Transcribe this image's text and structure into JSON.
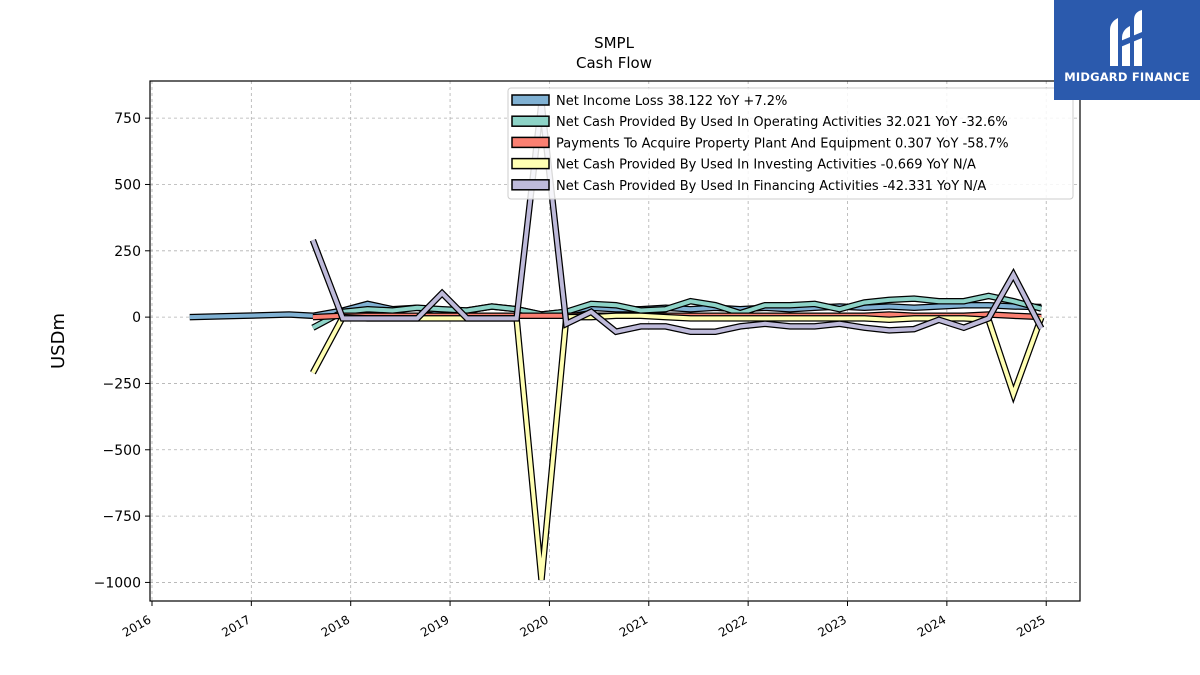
{
  "brand": {
    "logo_text": "MIDGARD FINANCE",
    "color": "#2b5aad"
  },
  "chart_data": {
    "type": "line",
    "title": "SMPL",
    "subtitle": "Cash Flow",
    "ylabel": "USDm",
    "xlabel": "",
    "ylim": [
      -1070,
      890
    ],
    "xlim": [
      2015.98,
      2025.34
    ],
    "yticks": [
      -1000,
      -750,
      -500,
      -250,
      0,
      250,
      500,
      750
    ],
    "ytick_labels": [
      "−1000",
      "−750",
      "−500",
      "−250",
      "0",
      "250",
      "500",
      "750"
    ],
    "xticks": [
      2016,
      2017,
      2018,
      2019,
      2020,
      2021,
      2022,
      2023,
      2024,
      2025
    ],
    "xtick_labels": [
      "2016",
      "2017",
      "2018",
      "2019",
      "2020",
      "2021",
      "2022",
      "2023",
      "2024",
      "2025"
    ],
    "grid": true,
    "legend_position": "top-right",
    "series": [
      {
        "name": "Net Income Loss",
        "legend": "Net Income Loss  38.122 YoY +7.2%",
        "color": "#80b1d3",
        "x": [
          2016.38,
          2016.92,
          2017.38,
          2017.62,
          2017.92,
          2018.17,
          2018.42,
          2018.67,
          2018.92,
          2019.17,
          2019.42,
          2019.67,
          2019.92,
          2020.17,
          2020.42,
          2020.67,
          2020.92,
          2021.17,
          2021.42,
          2021.67,
          2021.92,
          2022.17,
          2022.42,
          2022.67,
          2022.92,
          2023.17,
          2023.42,
          2023.67,
          2023.92,
          2024.17,
          2024.42,
          2024.67,
          2024.95
        ],
        "y": [
          0,
          5,
          10,
          5,
          25,
          50,
          30,
          35,
          20,
          25,
          40,
          30,
          10,
          20,
          35,
          30,
          30,
          35,
          30,
          35,
          30,
          35,
          30,
          35,
          40,
          35,
          40,
          35,
          40,
          45,
          45,
          40,
          38
        ]
      },
      {
        "name": "Net Cash Provided By Used In Operating Activities",
        "legend": "Net Cash Provided By Used In Operating Activities  32.021 YoY -32.6%",
        "color": "#8dd3c7",
        "x": [
          2017.62,
          2017.92,
          2018.17,
          2018.42,
          2018.67,
          2018.92,
          2019.17,
          2019.42,
          2019.67,
          2019.92,
          2020.17,
          2020.42,
          2020.67,
          2020.92,
          2021.17,
          2021.42,
          2021.67,
          2021.92,
          2022.17,
          2022.42,
          2022.67,
          2022.92,
          2023.17,
          2023.42,
          2023.67,
          2023.92,
          2024.17,
          2024.42,
          2024.67,
          2024.95
        ],
        "y": [
          -40,
          20,
          30,
          25,
          35,
          30,
          25,
          40,
          30,
          10,
          20,
          50,
          45,
          25,
          30,
          60,
          45,
          15,
          45,
          45,
          50,
          30,
          55,
          65,
          70,
          60,
          60,
          80,
          60,
          32
        ]
      },
      {
        "name": "Payments To Acquire Property Plant And Equipment",
        "legend": "Payments To Acquire Property Plant And Equipment  0.307 YoY -58.7%",
        "color": "#fb8072",
        "x": [
          2017.62,
          2017.92,
          2018.17,
          2018.42,
          2018.67,
          2018.92,
          2019.17,
          2019.42,
          2019.67,
          2019.92,
          2020.17,
          2020.42,
          2020.67,
          2020.92,
          2021.17,
          2021.42,
          2021.67,
          2021.92,
          2022.17,
          2022.42,
          2022.67,
          2022.92,
          2023.17,
          2023.42,
          2023.67,
          2023.92,
          2024.17,
          2024.42,
          2024.67,
          2024.95
        ],
        "y": [
          0,
          5,
          5,
          5,
          5,
          5,
          5,
          5,
          5,
          5,
          5,
          5,
          5,
          5,
          5,
          5,
          5,
          5,
          5,
          5,
          5,
          5,
          5,
          10,
          5,
          5,
          5,
          10,
          5,
          0.3
        ]
      },
      {
        "name": "Net Cash Provided By Used In Investing Activities",
        "legend": "Net Cash Provided By Used In Investing Activities  -0.669 YoY N/A",
        "color": "#ffffb3",
        "x": [
          2017.62,
          2017.92,
          2018.17,
          2018.42,
          2018.67,
          2018.92,
          2019.17,
          2019.42,
          2019.67,
          2019.92,
          2020.17,
          2020.42,
          2020.67,
          2020.92,
          2021.17,
          2021.42,
          2021.67,
          2021.92,
          2022.17,
          2022.42,
          2022.67,
          2022.92,
          2023.17,
          2023.42,
          2023.67,
          2023.92,
          2024.17,
          2024.42,
          2024.67,
          2024.95
        ],
        "y": [
          -210,
          0,
          -5,
          -5,
          -5,
          -5,
          -5,
          -5,
          -5,
          -990,
          0,
          0,
          5,
          5,
          0,
          -5,
          -5,
          -5,
          -5,
          -5,
          -5,
          -5,
          -5,
          -10,
          -5,
          -5,
          -5,
          -10,
          -290,
          -1
        ]
      },
      {
        "name": "Net Cash Provided By Used In Financing Activities",
        "legend": "Net Cash Provided By Used In Financing Activities  -42.331 YoY N/A",
        "color": "#bebada",
        "x": [
          2017.62,
          2017.92,
          2018.17,
          2018.42,
          2018.67,
          2018.92,
          2019.17,
          2019.42,
          2019.67,
          2019.92,
          2020.17,
          2020.42,
          2020.67,
          2020.92,
          2021.17,
          2021.42,
          2021.67,
          2021.92,
          2022.17,
          2022.42,
          2022.67,
          2022.92,
          2023.17,
          2023.42,
          2023.67,
          2023.92,
          2024.17,
          2024.42,
          2024.67,
          2024.95
        ],
        "y": [
          290,
          -5,
          -5,
          -5,
          -5,
          90,
          -5,
          -5,
          -5,
          810,
          -25,
          20,
          -55,
          -35,
          -35,
          -55,
          -55,
          -35,
          -25,
          -35,
          -35,
          -25,
          -40,
          -50,
          -45,
          -10,
          -40,
          -5,
          160,
          -42
        ]
      }
    ]
  }
}
